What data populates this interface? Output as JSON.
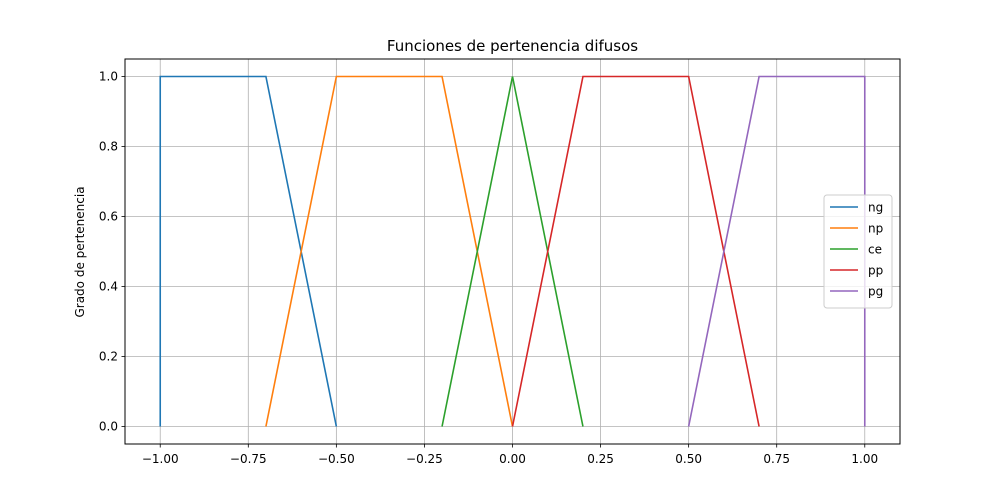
{
  "chart_data": {
    "type": "line",
    "title": "Funciones de pertenencia difusos",
    "xlabel": "",
    "ylabel": "Grado de pertenencia",
    "xlim": [
      -1.1,
      1.1
    ],
    "ylim": [
      -0.05,
      1.05
    ],
    "xticks": [
      -1.0,
      -0.75,
      -0.5,
      -0.25,
      0.0,
      0.25,
      0.5,
      0.75,
      1.0
    ],
    "xtick_labels": [
      "−1.00",
      "−0.75",
      "−0.50",
      "−0.25",
      "0.00",
      "0.25",
      "0.50",
      "0.75",
      "1.00"
    ],
    "yticks": [
      0.0,
      0.2,
      0.4,
      0.6,
      0.8,
      1.0
    ],
    "ytick_labels": [
      "0.0",
      "0.2",
      "0.4",
      "0.6",
      "0.8",
      "1.0"
    ],
    "grid": true,
    "legend_position": "center-right",
    "series": [
      {
        "name": "ng",
        "color": "#1f77b4",
        "x": [
          -1.0,
          -1.0,
          -0.7,
          -0.5
        ],
        "y": [
          0,
          1,
          1,
          0
        ]
      },
      {
        "name": "np",
        "color": "#ff7f0e",
        "x": [
          -0.7,
          -0.5,
          -0.2,
          0.0
        ],
        "y": [
          0,
          1,
          1,
          0
        ]
      },
      {
        "name": "ce",
        "color": "#2ca02c",
        "x": [
          -0.2,
          0.0,
          0.2
        ],
        "y": [
          0,
          1,
          0
        ]
      },
      {
        "name": "pp",
        "color": "#d62728",
        "x": [
          0.0,
          0.2,
          0.5,
          0.7
        ],
        "y": [
          0,
          1,
          1,
          0
        ]
      },
      {
        "name": "pg",
        "color": "#9467bd",
        "x": [
          0.5,
          0.7,
          1.0,
          1.0
        ],
        "y": [
          0,
          1,
          1,
          0
        ]
      }
    ]
  }
}
